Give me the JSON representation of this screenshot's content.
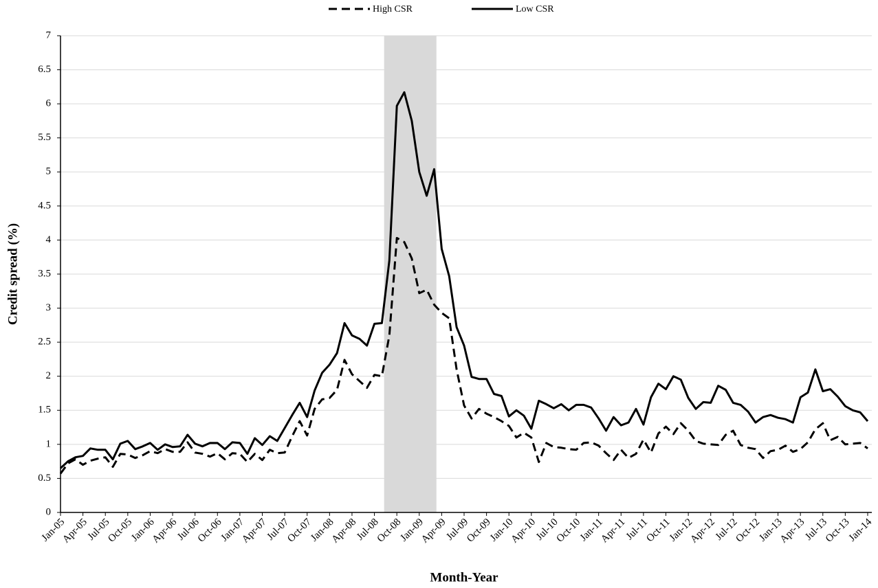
{
  "chart_data": {
    "type": "line",
    "y_label": "Credit spread (%)",
    "x_label": "Month-Year",
    "categories": [
      "Jan-05",
      null,
      null,
      "Apr-05",
      null,
      null,
      "Jul-05",
      null,
      null,
      "Oct-05",
      null,
      null,
      "Jan-06",
      null,
      null,
      "Apr-06",
      null,
      null,
      "Jul-06",
      null,
      null,
      "Oct-06",
      null,
      null,
      "Jan-07",
      null,
      null,
      "Apr-07",
      null,
      null,
      "Jul-07",
      null,
      null,
      "Oct-07",
      null,
      null,
      "Jan-08",
      null,
      null,
      "Apr-08",
      null,
      null,
      "Jul-08",
      null,
      null,
      "Oct-08",
      null,
      null,
      "Jan-09",
      null,
      null,
      "Apr-09",
      null,
      null,
      "Jul-09",
      null,
      null,
      "Oct-09",
      null,
      null,
      "Jan-10",
      null,
      null,
      "Apr-10",
      null,
      null,
      "Jul-10",
      null,
      null,
      "Oct-10",
      null,
      null,
      "Jan-11",
      null,
      null,
      "Apr-11",
      null,
      null,
      "Jul-11",
      null,
      null,
      "Oct-11",
      null,
      null,
      "Jan-12",
      null,
      null,
      "Apr-12",
      null,
      null,
      "Jul-12",
      null,
      null,
      "Oct-12",
      null,
      null,
      "Jan-13",
      null,
      null,
      "Apr-13",
      null,
      null,
      "Jul-13",
      null,
      null,
      "Oct-13",
      null,
      null,
      "Jan-14"
    ],
    "series": [
      {
        "name": "High CSR",
        "color": "#000000",
        "dash": "dashed",
        "values": [
          0.57,
          0.72,
          0.78,
          0.7,
          0.76,
          0.79,
          0.81,
          0.67,
          0.86,
          0.85,
          0.8,
          0.84,
          0.9,
          0.87,
          0.93,
          0.89,
          0.89,
          1.03,
          0.88,
          0.86,
          0.82,
          0.87,
          0.78,
          0.87,
          0.86,
          0.74,
          0.86,
          0.77,
          0.92,
          0.87,
          0.88,
          1.12,
          1.34,
          1.13,
          1.52,
          1.66,
          1.68,
          1.8,
          2.24,
          2.03,
          1.93,
          1.83,
          2.02,
          2.0,
          2.6,
          4.03,
          3.97,
          3.73,
          3.22,
          3.27,
          3.05,
          2.93,
          2.85,
          2.1,
          1.57,
          1.38,
          1.52,
          1.45,
          1.4,
          1.34,
          1.27,
          1.1,
          1.17,
          1.1,
          0.74,
          1.02,
          0.96,
          0.95,
          0.93,
          0.92,
          1.02,
          1.03,
          0.98,
          0.87,
          0.77,
          0.92,
          0.8,
          0.86,
          1.07,
          0.88,
          1.16,
          1.26,
          1.15,
          1.31,
          1.2,
          1.05,
          1.01,
          1.0,
          0.99,
          1.14,
          1.2,
          0.99,
          0.95,
          0.93,
          0.8,
          0.9,
          0.92,
          0.98,
          0.89,
          0.93,
          1.03,
          1.22,
          1.31,
          1.06,
          1.11,
          1.0,
          1.01,
          1.02,
          0.94
        ]
      },
      {
        "name": "Low CSR",
        "color": "#000000",
        "dash": "solid",
        "values": [
          0.65,
          0.75,
          0.81,
          0.83,
          0.94,
          0.92,
          0.92,
          0.78,
          1.01,
          1.05,
          0.93,
          0.97,
          1.02,
          0.92,
          1.0,
          0.96,
          0.97,
          1.14,
          1.01,
          0.97,
          1.02,
          1.02,
          0.93,
          1.03,
          1.02,
          0.86,
          1.09,
          0.99,
          1.12,
          1.05,
          1.24,
          1.43,
          1.61,
          1.4,
          1.79,
          2.05,
          2.17,
          2.34,
          2.78,
          2.6,
          2.55,
          2.45,
          2.77,
          2.78,
          3.7,
          5.97,
          6.17,
          5.75,
          5.0,
          4.65,
          5.04,
          3.87,
          3.47,
          2.72,
          2.45,
          1.99,
          1.96,
          1.96,
          1.74,
          1.71,
          1.41,
          1.5,
          1.42,
          1.23,
          1.64,
          1.59,
          1.53,
          1.59,
          1.5,
          1.58,
          1.58,
          1.54,
          1.38,
          1.2,
          1.4,
          1.28,
          1.32,
          1.52,
          1.29,
          1.69,
          1.89,
          1.81,
          2.0,
          1.95,
          1.68,
          1.52,
          1.62,
          1.61,
          1.86,
          1.8,
          1.61,
          1.58,
          1.48,
          1.32,
          1.4,
          1.43,
          1.39,
          1.37,
          1.32,
          1.69,
          1.76,
          2.1,
          1.78,
          1.81,
          1.7,
          1.56,
          1.5,
          1.47,
          1.34
        ]
      }
    ],
    "shaded_range": [
      43.3,
      50.3
    ],
    "shade_color": "#d9d9d9",
    "ylim": [
      0,
      7
    ],
    "yticks": [
      0,
      0.5,
      1,
      1.5,
      2,
      2.5,
      3,
      3.5,
      4,
      4.5,
      5,
      5.5,
      6,
      6.5,
      7
    ],
    "grid": true,
    "legend": "top"
  }
}
